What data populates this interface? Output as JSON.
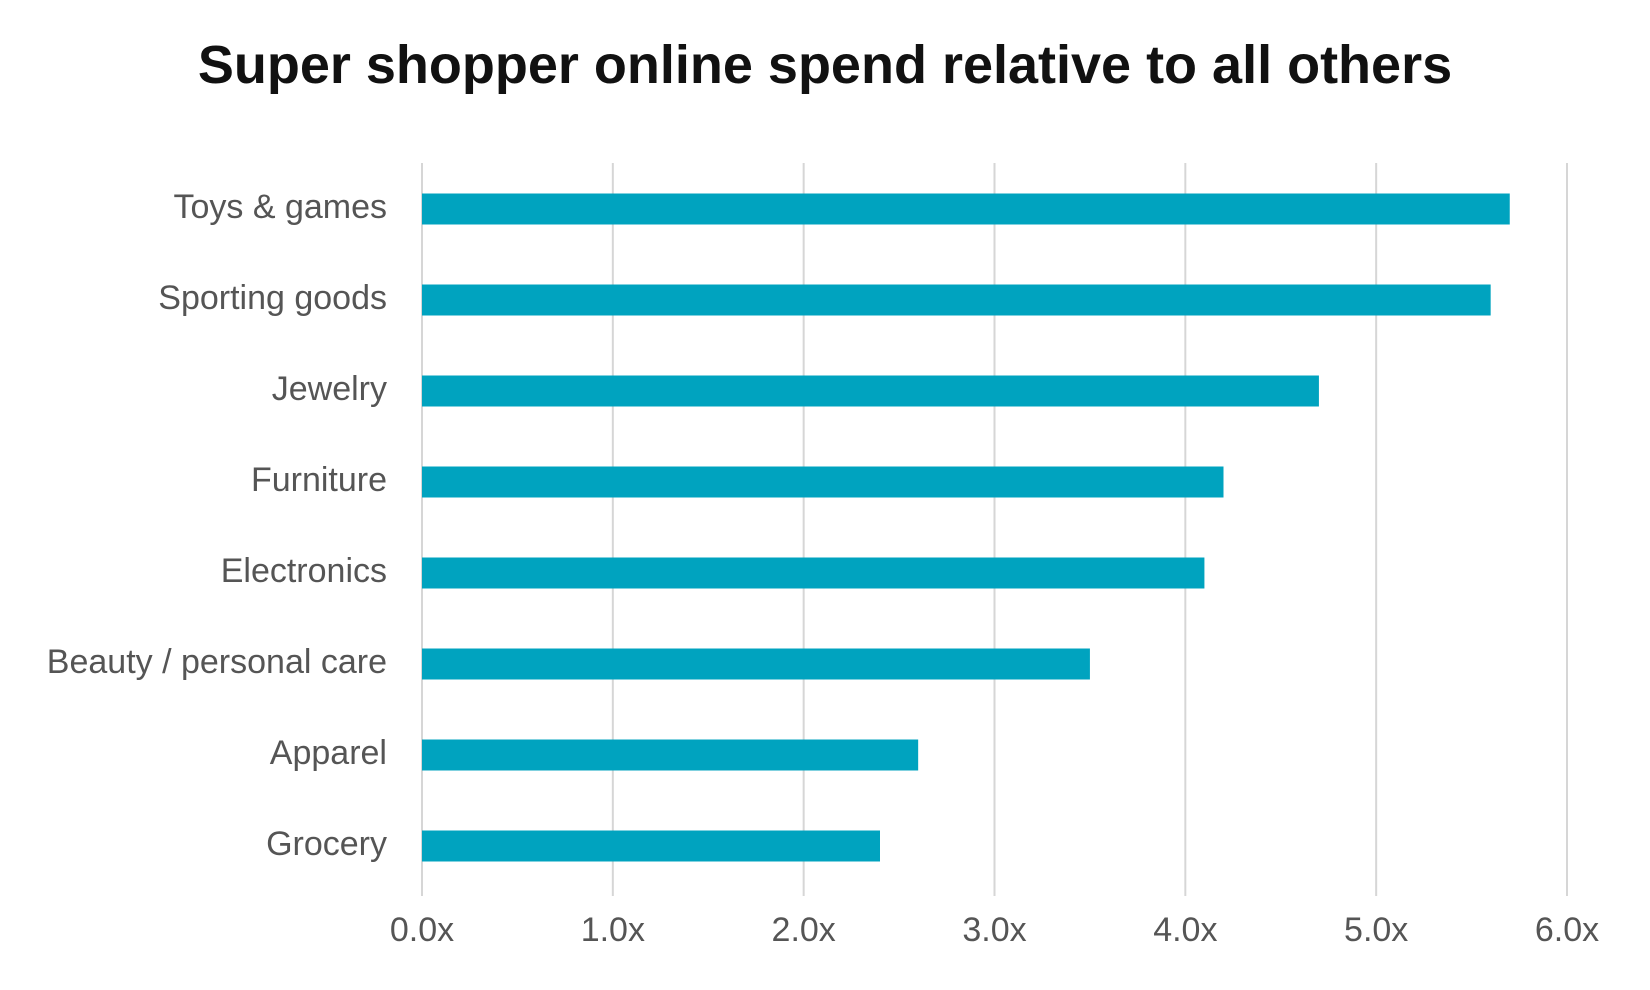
{
  "chart_data": {
    "type": "bar",
    "orientation": "horizontal",
    "title": "Super shopper online spend relative to all others",
    "xlabel": "",
    "ylabel": "",
    "categories": [
      "Toys & games",
      "Sporting goods",
      "Jewelry",
      "Furniture",
      "Electronics",
      "Beauty / personal care",
      "Apparel",
      "Grocery"
    ],
    "values": [
      5.7,
      5.6,
      4.7,
      4.2,
      4.1,
      3.5,
      2.6,
      2.4
    ],
    "xlim": [
      0,
      6
    ],
    "x_ticks": [
      0,
      1,
      2,
      3,
      4,
      5,
      6
    ],
    "x_tick_labels": [
      "0.0x",
      "1.0x",
      "2.0x",
      "3.0x",
      "4.0x",
      "5.0x",
      "6.0x"
    ],
    "grid": "vertical",
    "legend": "none",
    "colors": {
      "bar": "#00a3bf",
      "grid": "#d6d6d6",
      "label": "#555555",
      "title": "#111111"
    }
  }
}
